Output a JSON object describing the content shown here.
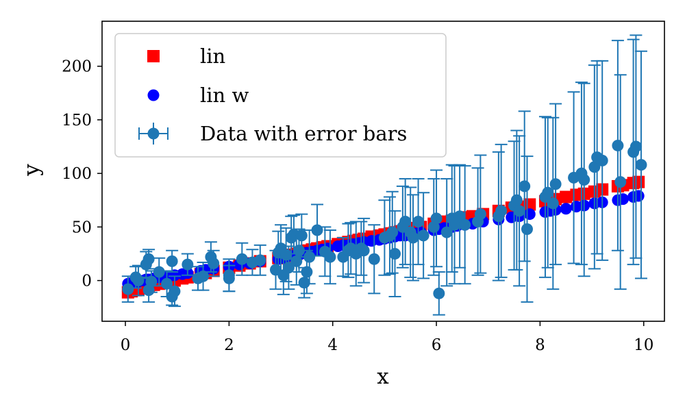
{
  "chart_data": {
    "type": "scatter",
    "xlabel": "x",
    "ylabel": "y",
    "xlim": [
      -0.45,
      10.4
    ],
    "ylim": [
      -38,
      242
    ],
    "xticks": [
      0,
      2,
      4,
      6,
      8,
      10
    ],
    "yticks": [
      0,
      50,
      100,
      150,
      200
    ],
    "grid": false,
    "legend_position": "top-left",
    "series": [
      {
        "name": "lin",
        "marker": "square",
        "color": "#ff0000",
        "x": [
          0.05,
          0.12,
          0.2,
          0.25,
          0.35,
          0.4,
          0.45,
          0.55,
          0.65,
          0.75,
          0.85,
          0.95,
          1.1,
          1.2,
          1.45,
          1.55,
          1.7,
          2.0,
          2.2,
          2.4,
          2.6,
          2.95,
          3.0,
          3.05,
          3.1,
          3.2,
          3.3,
          3.4,
          3.5,
          3.6,
          3.7,
          3.8,
          3.9,
          4.1,
          4.2,
          4.3,
          4.4,
          4.5,
          4.6,
          4.75,
          4.9,
          5.0,
          5.1,
          5.2,
          5.3,
          5.4,
          5.5,
          5.6,
          5.7,
          5.95,
          6.05,
          6.15,
          6.3,
          6.4,
          6.55,
          6.7,
          6.9,
          7.2,
          7.45,
          7.6,
          7.8,
          8.1,
          8.2,
          8.3,
          8.5,
          8.7,
          8.85,
          9.05,
          9.2,
          9.5,
          9.6,
          9.8,
          9.9
        ],
        "y": [
          -11,
          -10,
          -9,
          -8,
          -7,
          -6,
          -5,
          -4,
          -3,
          -2,
          -1,
          0,
          2,
          3,
          6,
          7,
          9,
          12,
          14,
          16,
          18,
          21,
          21,
          22,
          23,
          24,
          25,
          26,
          28,
          29,
          30,
          31,
          32,
          34,
          35,
          36,
          37,
          38,
          39,
          41,
          42,
          43,
          44,
          45,
          46,
          47,
          48,
          49,
          50,
          53,
          54,
          55,
          56,
          57,
          59,
          60,
          62,
          65,
          68,
          69,
          71,
          74,
          75,
          76,
          78,
          80,
          81,
          83,
          85,
          88,
          89,
          91,
          92
        ]
      },
      {
        "name": "lin w",
        "marker": "circle",
        "color": "#0000ff",
        "x": [
          0.05,
          0.12,
          0.2,
          0.25,
          0.35,
          0.4,
          0.45,
          0.55,
          0.65,
          0.75,
          0.85,
          0.95,
          1.1,
          1.2,
          1.45,
          1.55,
          1.7,
          2.0,
          2.2,
          2.4,
          2.6,
          2.95,
          3.0,
          3.05,
          3.1,
          3.2,
          3.3,
          3.4,
          3.5,
          3.6,
          3.7,
          3.8,
          3.9,
          4.1,
          4.2,
          4.3,
          4.4,
          4.5,
          4.6,
          4.75,
          4.9,
          5.0,
          5.1,
          5.2,
          5.3,
          5.4,
          5.5,
          5.6,
          5.7,
          5.95,
          6.05,
          6.15,
          6.3,
          6.4,
          6.55,
          6.7,
          6.9,
          7.2,
          7.45,
          7.6,
          7.8,
          8.1,
          8.2,
          8.3,
          8.5,
          8.7,
          8.85,
          9.05,
          9.2,
          9.5,
          9.6,
          9.8,
          9.9
        ],
        "y": [
          -3,
          -2,
          -2,
          -1,
          0,
          1,
          1,
          2,
          3,
          3,
          4,
          5,
          6,
          7,
          9,
          10,
          11,
          13,
          15,
          16,
          18,
          20,
          21,
          21,
          22,
          23,
          24,
          25,
          26,
          27,
          28,
          29,
          30,
          32,
          33,
          33,
          34,
          35,
          36,
          37,
          38,
          39,
          40,
          41,
          42,
          42,
          43,
          44,
          45,
          47,
          48,
          49,
          50,
          51,
          52,
          53,
          55,
          57,
          59,
          60,
          62,
          64,
          65,
          66,
          67,
          69,
          70,
          72,
          73,
          75,
          76,
          78,
          79
        ]
      },
      {
        "name": "Data with error bars",
        "marker": "circle-errorbar",
        "color": "#1f77b4",
        "points": [
          {
            "x": 0.05,
            "y": -8,
            "err": 12
          },
          {
            "x": 0.2,
            "y": 3,
            "err": 10
          },
          {
            "x": 0.25,
            "y": 0,
            "err": 14
          },
          {
            "x": 0.4,
            "y": 15,
            "err": 12
          },
          {
            "x": 0.45,
            "y": 20,
            "err": 9
          },
          {
            "x": 0.45,
            "y": -9,
            "err": 11
          },
          {
            "x": 0.5,
            "y": -1,
            "err": 10
          },
          {
            "x": 0.65,
            "y": 8,
            "err": 13
          },
          {
            "x": 0.8,
            "y": -3,
            "err": 12
          },
          {
            "x": 0.9,
            "y": 18,
            "err": 10
          },
          {
            "x": 0.9,
            "y": -15,
            "err": 8
          },
          {
            "x": 0.95,
            "y": -10,
            "err": 14
          },
          {
            "x": 1.2,
            "y": 15,
            "err": 10
          },
          {
            "x": 1.4,
            "y": 2,
            "err": 11
          },
          {
            "x": 1.5,
            "y": 4,
            "err": 13
          },
          {
            "x": 1.65,
            "y": 22,
            "err": 14
          },
          {
            "x": 1.7,
            "y": 16,
            "err": 12
          },
          {
            "x": 2.0,
            "y": 5,
            "err": 15
          },
          {
            "x": 2.0,
            "y": 2,
            "err": 12
          },
          {
            "x": 2.25,
            "y": 20,
            "err": 15
          },
          {
            "x": 2.45,
            "y": 17,
            "err": 12
          },
          {
            "x": 2.6,
            "y": 19,
            "err": 14
          },
          {
            "x": 2.9,
            "y": 10,
            "err": 18
          },
          {
            "x": 2.95,
            "y": 26,
            "err": 20
          },
          {
            "x": 3.0,
            "y": 30,
            "err": 22
          },
          {
            "x": 3.05,
            "y": 5,
            "err": 18
          },
          {
            "x": 3.1,
            "y": 24,
            "err": 25
          },
          {
            "x": 3.15,
            "y": 12,
            "err": 20
          },
          {
            "x": 3.2,
            "y": 40,
            "err": 20
          },
          {
            "x": 3.25,
            "y": 43,
            "err": 18
          },
          {
            "x": 3.3,
            "y": 18,
            "err": 22
          },
          {
            "x": 3.35,
            "y": 28,
            "err": 20
          },
          {
            "x": 3.4,
            "y": 42,
            "err": 20
          },
          {
            "x": 3.45,
            "y": -2,
            "err": 14
          },
          {
            "x": 3.5,
            "y": 8,
            "err": 20
          },
          {
            "x": 3.55,
            "y": 22,
            "err": 25
          },
          {
            "x": 3.7,
            "y": 47,
            "err": 24
          },
          {
            "x": 3.85,
            "y": 27,
            "err": 23
          },
          {
            "x": 3.95,
            "y": 22,
            "err": 25
          },
          {
            "x": 4.2,
            "y": 22,
            "err": 18
          },
          {
            "x": 4.3,
            "y": 28,
            "err": 25
          },
          {
            "x": 4.35,
            "y": 30,
            "err": 24
          },
          {
            "x": 4.45,
            "y": 25,
            "err": 30
          },
          {
            "x": 4.55,
            "y": 30,
            "err": 25
          },
          {
            "x": 4.6,
            "y": 28,
            "err": 30
          },
          {
            "x": 4.8,
            "y": 20,
            "err": 32
          },
          {
            "x": 5.0,
            "y": 40,
            "err": 35
          },
          {
            "x": 5.1,
            "y": 42,
            "err": 36
          },
          {
            "x": 5.15,
            "y": 45,
            "err": 38
          },
          {
            "x": 5.2,
            "y": 25,
            "err": 40
          },
          {
            "x": 5.35,
            "y": 50,
            "err": 38
          },
          {
            "x": 5.4,
            "y": 55,
            "err": 40
          },
          {
            "x": 5.5,
            "y": 45,
            "err": 42
          },
          {
            "x": 5.55,
            "y": 40,
            "err": 40
          },
          {
            "x": 5.65,
            "y": 55,
            "err": 40
          },
          {
            "x": 5.75,
            "y": 42,
            "err": 40
          },
          {
            "x": 5.95,
            "y": 50,
            "err": 45
          },
          {
            "x": 6.0,
            "y": 58,
            "err": 45
          },
          {
            "x": 6.05,
            "y": -12,
            "err": 20
          },
          {
            "x": 6.2,
            "y": 45,
            "err": 50
          },
          {
            "x": 6.3,
            "y": 58,
            "err": 50
          },
          {
            "x": 6.35,
            "y": 52,
            "err": 55
          },
          {
            "x": 6.45,
            "y": 60,
            "err": 48
          },
          {
            "x": 6.55,
            "y": 52,
            "err": 55
          },
          {
            "x": 6.8,
            "y": 55,
            "err": 50
          },
          {
            "x": 6.85,
            "y": 62,
            "err": 55
          },
          {
            "x": 7.2,
            "y": 60,
            "err": 60
          },
          {
            "x": 7.25,
            "y": 65,
            "err": 62
          },
          {
            "x": 7.5,
            "y": 70,
            "err": 60
          },
          {
            "x": 7.55,
            "y": 75,
            "err": 65
          },
          {
            "x": 7.6,
            "y": 65,
            "err": 70
          },
          {
            "x": 7.7,
            "y": 88,
            "err": 70
          },
          {
            "x": 7.75,
            "y": 48,
            "err": 68
          },
          {
            "x": 8.1,
            "y": 78,
            "err": 75
          },
          {
            "x": 8.15,
            "y": 82,
            "err": 70
          },
          {
            "x": 8.25,
            "y": 72,
            "err": 80
          },
          {
            "x": 8.3,
            "y": 90,
            "err": 75
          },
          {
            "x": 8.65,
            "y": 96,
            "err": 80
          },
          {
            "x": 8.8,
            "y": 100,
            "err": 85
          },
          {
            "x": 8.85,
            "y": 94,
            "err": 90
          },
          {
            "x": 9.05,
            "y": 106,
            "err": 95
          },
          {
            "x": 9.1,
            "y": 115,
            "err": 90
          },
          {
            "x": 9.2,
            "y": 112,
            "err": 93
          },
          {
            "x": 9.5,
            "y": 126,
            "err": 98
          },
          {
            "x": 9.55,
            "y": 92,
            "err": 100
          },
          {
            "x": 9.8,
            "y": 120,
            "err": 105
          },
          {
            "x": 9.85,
            "y": 125,
            "err": 104
          },
          {
            "x": 9.95,
            "y": 108,
            "err": 106
          }
        ]
      }
    ]
  }
}
